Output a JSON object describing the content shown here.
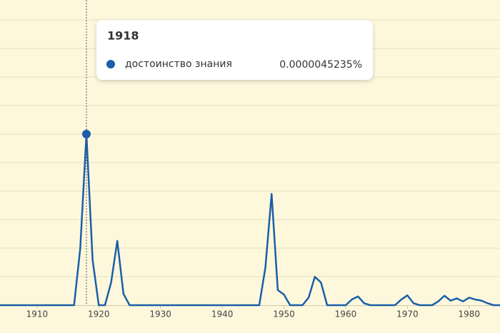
{
  "chart_data": {
    "type": "line",
    "x": [
      1904,
      1905,
      1906,
      1907,
      1908,
      1909,
      1910,
      1911,
      1912,
      1913,
      1914,
      1915,
      1916,
      1917,
      1918,
      1919,
      1920,
      1921,
      1922,
      1923,
      1924,
      1925,
      1926,
      1927,
      1928,
      1929,
      1930,
      1931,
      1932,
      1933,
      1934,
      1935,
      1936,
      1937,
      1938,
      1939,
      1940,
      1941,
      1942,
      1943,
      1944,
      1945,
      1946,
      1947,
      1948,
      1949,
      1950,
      1951,
      1952,
      1953,
      1954,
      1955,
      1956,
      1957,
      1958,
      1959,
      1960,
      1961,
      1962,
      1963,
      1964,
      1965,
      1966,
      1967,
      1968,
      1969,
      1970,
      1971,
      1972,
      1973,
      1974,
      1975,
      1976,
      1977,
      1978,
      1979,
      1980,
      1981,
      1982,
      1983,
      1984,
      1985
    ],
    "series": [
      {
        "name": "достоинство знания",
        "color": "#1a5fa8",
        "values": [
          0,
          0,
          0,
          0,
          0,
          0,
          0,
          0,
          0,
          0,
          0,
          0,
          0,
          1.5e-06,
          4.5235e-06,
          1.2e-06,
          0,
          0,
          6e-07,
          1.7e-06,
          3e-07,
          0,
          0,
          0,
          0,
          0,
          0,
          0,
          0,
          0,
          0,
          0,
          0,
          0,
          0,
          0,
          0,
          0,
          0,
          0,
          0,
          0,
          0,
          1e-06,
          2.94e-06,
          4e-07,
          2.8e-07,
          0,
          0,
          0,
          2e-07,
          7.5e-07,
          6e-07,
          0,
          0,
          0,
          0,
          1.5e-07,
          2.3e-07,
          5e-08,
          0,
          0,
          0,
          0,
          0,
          1.5e-07,
          2.6e-07,
          5e-08,
          0,
          0,
          0,
          1e-07,
          2.5e-07,
          1.2e-07,
          1.8e-07,
          1e-07,
          2e-07,
          1.5e-07,
          1.2e-07,
          5e-08,
          0,
          0
        ],
        "value_labels": [
          null,
          null,
          null,
          null,
          null,
          null,
          null,
          null,
          null,
          null,
          null,
          null,
          null,
          null,
          "0.0000045235%",
          null,
          null,
          null,
          null,
          null,
          null,
          null,
          null,
          null,
          null,
          null,
          null,
          null,
          null,
          null,
          null,
          null,
          null,
          null,
          null,
          null,
          null,
          null,
          null,
          null,
          null,
          null,
          null,
          null,
          null,
          null,
          null,
          null,
          null,
          null,
          null,
          null,
          null,
          null,
          null,
          null,
          null,
          null,
          null,
          null,
          null,
          null,
          null,
          null,
          null,
          null,
          null,
          null,
          null,
          null,
          null,
          null,
          null,
          null,
          null,
          null,
          null,
          null,
          null,
          null,
          null,
          null
        ]
      }
    ],
    "xlim": [
      1904,
      1985
    ],
    "xticks": [
      1910,
      1920,
      1930,
      1940,
      1950,
      1960,
      1970,
      1980
    ],
    "ylim": [
      0,
      8.067e-06
    ],
    "grid": true
  }
}
